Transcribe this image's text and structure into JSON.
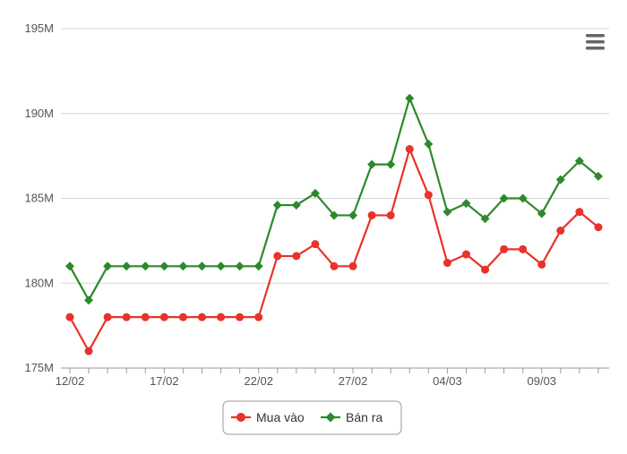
{
  "chart_data": {
    "type": "line",
    "title": "",
    "xlabel": "",
    "ylabel": "",
    "ylim": [
      175,
      195
    ],
    "y_unit_suffix": "M",
    "y_ticks": [
      "175M",
      "180M",
      "185M",
      "190M",
      "195M"
    ],
    "y_tick_values": [
      175,
      180,
      185,
      190,
      195
    ],
    "x": [
      "12/02",
      "13/02",
      "14/02",
      "15/02",
      "16/02",
      "17/02",
      "18/02",
      "19/02",
      "20/02",
      "21/02",
      "22/02",
      "23/02",
      "24/02",
      "25/02",
      "26/02",
      "27/02",
      "28/02",
      "01/03",
      "02/03",
      "03/03",
      "04/03",
      "05/03",
      "06/03",
      "07/03",
      "08/03",
      "09/03",
      "10/03",
      "11/03",
      "12/03"
    ],
    "x_tick_labels": [
      "12/02",
      "17/02",
      "22/02",
      "27/02",
      "04/03",
      "09/03"
    ],
    "x_tick_indices": [
      0,
      5,
      10,
      15,
      20,
      25
    ],
    "grid": true,
    "legend_placement": "bottom-center",
    "series": [
      {
        "name": "Mua vào",
        "color": "#e8322a",
        "marker": "circle",
        "values": [
          178,
          176,
          178,
          178,
          178,
          178,
          178,
          178,
          178,
          178,
          178,
          181.6,
          181.6,
          182.3,
          181,
          181,
          184,
          184,
          187.9,
          185.2,
          181.2,
          181.7,
          180.8,
          182,
          182,
          181.1,
          183.1,
          184.2,
          183.3
        ]
      },
      {
        "name": "Bán ra",
        "color": "#2b8a2b",
        "marker": "diamond",
        "values": [
          181,
          179,
          181,
          181,
          181,
          181,
          181,
          181,
          181,
          181,
          181,
          184.6,
          184.6,
          185.3,
          184,
          184,
          187,
          187,
          190.9,
          188.2,
          184.2,
          184.7,
          183.8,
          185,
          185,
          184.1,
          186.1,
          187.2,
          186.3
        ]
      }
    ]
  },
  "menu": {
    "icon": "hamburger-menu-icon"
  }
}
